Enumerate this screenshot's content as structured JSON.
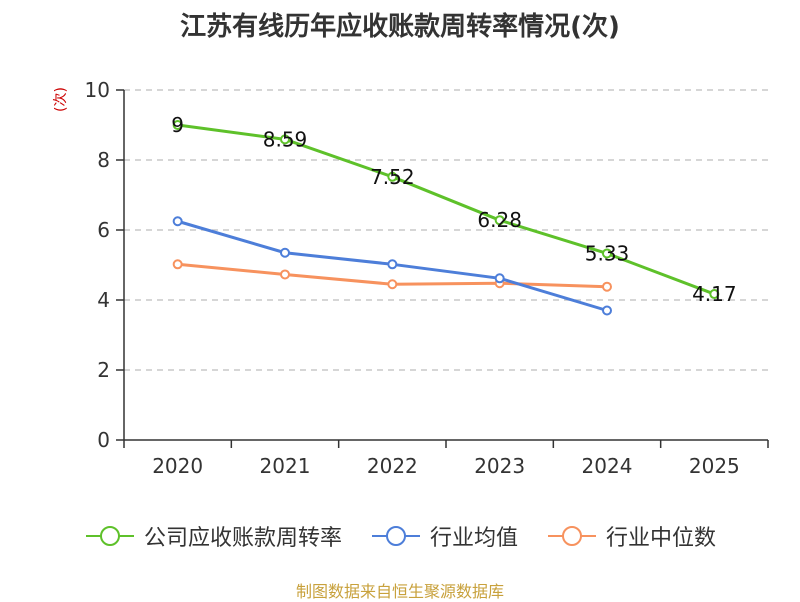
{
  "title": "江苏有线历年应收账款周转率情况(次)",
  "unit_label": "(次)",
  "footer": "制图数据来自恒生聚源数据库",
  "colors": {
    "company": "#5ec12a",
    "avg": "#4d7ed9",
    "median": "#f7925e",
    "grid": "#c8c8c8",
    "axis": "#333333"
  },
  "chart_data": {
    "type": "line",
    "title": "江苏有线历年应收账款周转率情况(次)",
    "ylabel": "(次)",
    "xlabel": "",
    "ylim": [
      0,
      10
    ],
    "yticks": [
      0,
      2,
      4,
      6,
      8,
      10
    ],
    "categories": [
      "2020",
      "2021",
      "2022",
      "2023",
      "2024",
      "2025"
    ],
    "legend_position": "bottom",
    "series": [
      {
        "key": "company",
        "name": "公司应收账款周转率",
        "values": [
          9,
          8.59,
          7.52,
          6.28,
          5.33,
          4.17
        ],
        "labels": [
          "9",
          "8.59",
          "7.52",
          "6.28",
          "5.33",
          "4.17"
        ]
      },
      {
        "key": "avg",
        "name": "行业均值",
        "values": [
          6.25,
          5.35,
          5.02,
          4.62,
          3.7,
          null
        ]
      },
      {
        "key": "median",
        "name": "行业中位数",
        "values": [
          5.02,
          4.73,
          4.45,
          4.48,
          4.38,
          null
        ]
      }
    ]
  }
}
